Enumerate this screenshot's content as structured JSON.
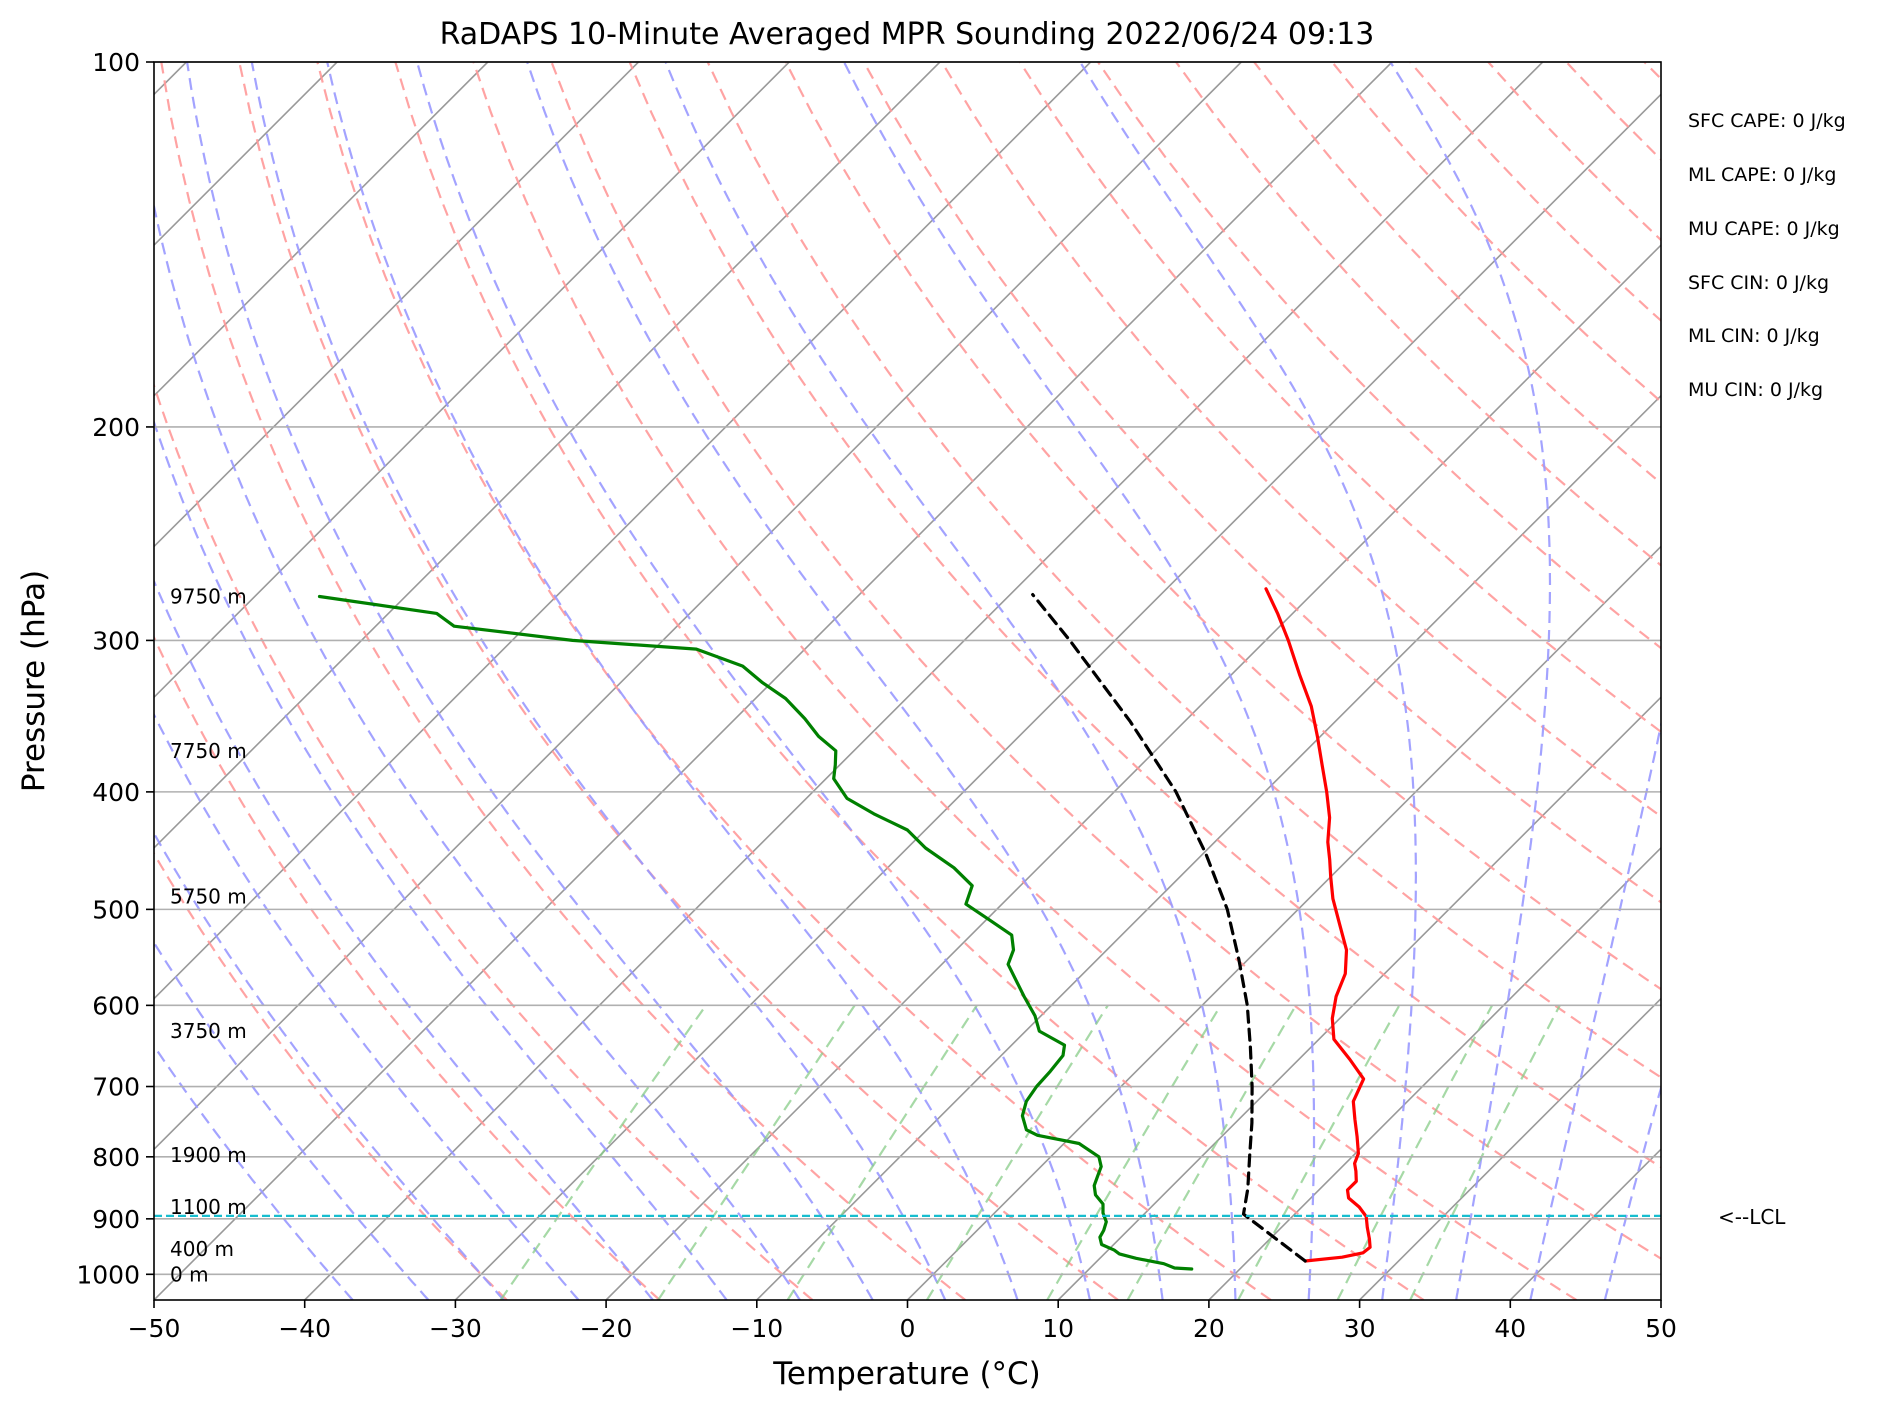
{
  "chart_data": {
    "type": "line",
    "title": "RaDAPS 10-Minute Averaged MPR Sounding 2022/06/24 09:13",
    "xlabel": "Temperature (°C)",
    "ylabel": "Pressure (hPa)",
    "xlim": [
      -50,
      50
    ],
    "ylim": [
      1050,
      100
    ],
    "y_scale": "log",
    "grid": true,
    "x_ticks": [
      "−50",
      "−40",
      "−30",
      "−20",
      "−10",
      "0",
      "10",
      "20",
      "30",
      "40",
      "50"
    ],
    "y_ticks": [
      {
        "value": 100,
        "label": "100"
      },
      {
        "value": 200,
        "label": "200"
      },
      {
        "value": 300,
        "label": "300"
      },
      {
        "value": 400,
        "label": "400"
      },
      {
        "value": 500,
        "label": "500"
      },
      {
        "value": 600,
        "label": "600"
      },
      {
        "value": 700,
        "label": "700"
      },
      {
        "value": 800,
        "label": "800"
      },
      {
        "value": 900,
        "label": "900"
      },
      {
        "value": 1000,
        "label": "1000"
      }
    ],
    "skew": true,
    "series": [
      {
        "color": "#ff0000",
        "points": [
          {
            "p": 975,
            "t": 23.8
          },
          {
            "p": 968,
            "t": 26.0
          },
          {
            "p": 960,
            "t": 27.1
          },
          {
            "p": 950,
            "t": 27.2
          },
          {
            "p": 935,
            "t": 26.6
          },
          {
            "p": 915,
            "t": 25.7
          },
          {
            "p": 896,
            "t": 24.9
          },
          {
            "p": 880,
            "t": 23.8
          },
          {
            "p": 865,
            "t": 22.5
          },
          {
            "p": 852,
            "t": 21.9
          },
          {
            "p": 838,
            "t": 21.9
          },
          {
            "p": 822,
            "t": 21.2
          },
          {
            "p": 810,
            "t": 20.6
          },
          {
            "p": 795,
            "t": 20.2
          },
          {
            "p": 770,
            "t": 19.0
          },
          {
            "p": 745,
            "t": 17.7
          },
          {
            "p": 720,
            "t": 16.4
          },
          {
            "p": 690,
            "t": 15.6
          },
          {
            "p": 665,
            "t": 13.4
          },
          {
            "p": 640,
            "t": 11.0
          },
          {
            "p": 615,
            "t": 9.5
          },
          {
            "p": 590,
            "t": 8.3
          },
          {
            "p": 565,
            "t": 7.4
          },
          {
            "p": 540,
            "t": 5.9
          },
          {
            "p": 515,
            "t": 3.8
          },
          {
            "p": 490,
            "t": 1.6
          },
          {
            "p": 470,
            "t": 0.0
          },
          {
            "p": 455,
            "t": -1.2
          },
          {
            "p": 440,
            "t": -2.5
          },
          {
            "p": 420,
            "t": -4.0
          },
          {
            "p": 400,
            "t": -5.9
          },
          {
            "p": 380,
            "t": -8.0
          },
          {
            "p": 360,
            "t": -10.2
          },
          {
            "p": 340,
            "t": -12.6
          },
          {
            "p": 320,
            "t": -15.5
          },
          {
            "p": 300,
            "t": -18.5
          },
          {
            "p": 285,
            "t": -21.0
          },
          {
            "p": 272,
            "t": -23.4
          }
        ]
      },
      {
        "color": "#008000",
        "points": [
          {
            "p": 990,
            "t": 16.8
          },
          {
            "p": 988,
            "t": 15.6
          },
          {
            "p": 980,
            "t": 14.6
          },
          {
            "p": 970,
            "t": 12.4
          },
          {
            "p": 962,
            "t": 11.0
          },
          {
            "p": 955,
            "t": 10.4
          },
          {
            "p": 945,
            "t": 9.2
          },
          {
            "p": 932,
            "t": 8.6
          },
          {
            "p": 920,
            "t": 8.4
          },
          {
            "p": 905,
            "t": 8.0
          },
          {
            "p": 890,
            "t": 7.2
          },
          {
            "p": 875,
            "t": 6.6
          },
          {
            "p": 860,
            "t": 5.5
          },
          {
            "p": 845,
            "t": 4.8
          },
          {
            "p": 830,
            "t": 4.4
          },
          {
            "p": 815,
            "t": 4.0
          },
          {
            "p": 800,
            "t": 3.2
          },
          {
            "p": 780,
            "t": 1.0
          },
          {
            "p": 768,
            "t": -2.3
          },
          {
            "p": 760,
            "t": -3.4
          },
          {
            "p": 740,
            "t": -4.6
          },
          {
            "p": 720,
            "t": -5.3
          },
          {
            "p": 700,
            "t": -5.6
          },
          {
            "p": 680,
            "t": -5.7
          },
          {
            "p": 660,
            "t": -5.9
          },
          {
            "p": 647,
            "t": -6.5
          },
          {
            "p": 630,
            "t": -9.1
          },
          {
            "p": 612,
            "t": -10.4
          },
          {
            "p": 590,
            "t": -12.4
          },
          {
            "p": 570,
            "t": -14.2
          },
          {
            "p": 555,
            "t": -15.6
          },
          {
            "p": 540,
            "t": -16.2
          },
          {
            "p": 525,
            "t": -17.3
          },
          {
            "p": 510,
            "t": -19.8
          },
          {
            "p": 495,
            "t": -22.4
          },
          {
            "p": 478,
            "t": -23.2
          },
          {
            "p": 462,
            "t": -25.6
          },
          {
            "p": 445,
            "t": -28.8
          },
          {
            "p": 430,
            "t": -31.2
          },
          {
            "p": 417,
            "t": -34.5
          },
          {
            "p": 405,
            "t": -37.3
          },
          {
            "p": 390,
            "t": -39.5
          },
          {
            "p": 380,
            "t": -40.3
          },
          {
            "p": 370,
            "t": -41.2
          },
          {
            "p": 360,
            "t": -43.3
          },
          {
            "p": 348,
            "t": -45.4
          },
          {
            "p": 335,
            "t": -48.0
          },
          {
            "p": 325,
            "t": -50.6
          },
          {
            "p": 315,
            "t": -53.0
          },
          {
            "p": 305,
            "t": -57.2
          },
          {
            "p": 300,
            "t": -66.0
          },
          {
            "p": 292,
            "t": -74.8
          },
          {
            "p": 285,
            "t": -76.8
          },
          {
            "p": 276,
            "t": -85.7
          }
        ]
      },
      {
        "color": "#000000",
        "dashed": true,
        "points": [
          {
            "p": 975,
            "t": 23.8
          },
          {
            "p": 892,
            "t": 16.6
          },
          {
            "p": 850,
            "t": 15.2
          },
          {
            "p": 800,
            "t": 13.2
          },
          {
            "p": 750,
            "t": 11.1
          },
          {
            "p": 700,
            "t": 8.7
          },
          {
            "p": 650,
            "t": 6.0
          },
          {
            "p": 600,
            "t": 3.0
          },
          {
            "p": 550,
            "t": -0.6
          },
          {
            "p": 500,
            "t": -4.7
          },
          {
            "p": 450,
            "t": -9.8
          },
          {
            "p": 400,
            "t": -15.9
          },
          {
            "p": 350,
            "t": -23.6
          },
          {
            "p": 300,
            "t": -33.0
          },
          {
            "p": 275,
            "t": -38.5
          }
        ]
      }
    ],
    "lcl": {
      "p": 895,
      "label": "<--LCL",
      "color": "#17becf"
    },
    "height_labels": [
      {
        "p": 276,
        "label": "9750 m"
      },
      {
        "p": 370,
        "label": "7750 m"
      },
      {
        "p": 488,
        "label": "5750 m"
      },
      {
        "p": 630,
        "label": "3750 m"
      },
      {
        "p": 797,
        "label": "1900 m"
      },
      {
        "p": 880,
        "label": "1100 m"
      },
      {
        "p": 953,
        "label": "400 m"
      },
      {
        "p": 1000,
        "label": "0 m"
      }
    ],
    "background_lines": {
      "isotherm_color": "#999999",
      "dry_adiabat_color": "#ff9999",
      "moist_adiabat_color": "#9999ff",
      "mixing_ratio_color": "#88cc88"
    }
  },
  "stats": [
    "SFC CAPE: 0 J/kg",
    "ML CAPE: 0 J/kg",
    "MU CAPE: 0 J/kg",
    "SFC CIN: 0 J/kg",
    "ML CIN: 0 J/kg",
    "MU CIN: 0 J/kg"
  ]
}
